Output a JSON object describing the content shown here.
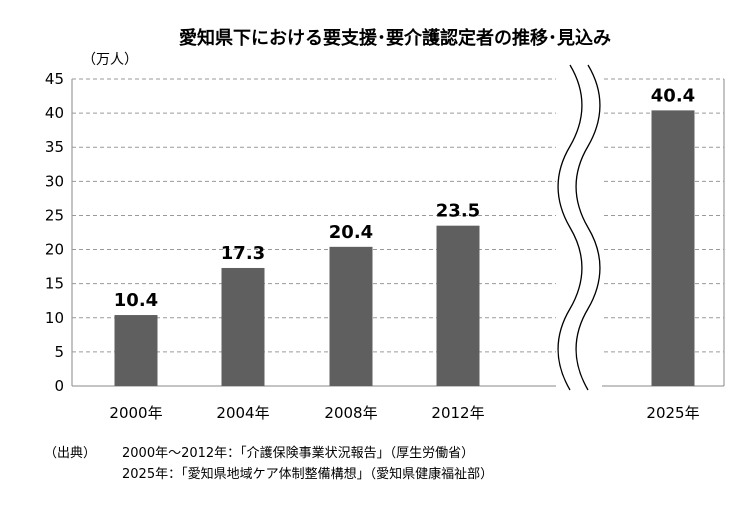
{
  "chart_data": {
    "type": "bar",
    "title": "愛知県下における要支援･要介護認定者の推移･見込み",
    "unit_label": "（万人）",
    "categories": [
      "2000年",
      "2004年",
      "2008年",
      "2012年",
      "2025年"
    ],
    "values": [
      10.4,
      17.3,
      20.4,
      23.5,
      40.4
    ],
    "data_labels": [
      "10.4",
      "17.3",
      "20.4",
      "23.5",
      "40.4"
    ],
    "ylim": [
      0,
      45
    ],
    "yticks": [
      0,
      5,
      10,
      15,
      20,
      25,
      30,
      35,
      40,
      45
    ],
    "grid": true,
    "axis_break": "between 2012年 and 2025年",
    "bar_color": "#5f5f5f",
    "grid_color": "#9a9a9a"
  },
  "source": {
    "label": "（出典）",
    "lines": [
      "2000年～2012年：「介護保険事業状況報告」（厚生労働省）",
      "2025年：「愛知県地域ケア体制整備構想」（愛知県健康福祉部）"
    ]
  }
}
